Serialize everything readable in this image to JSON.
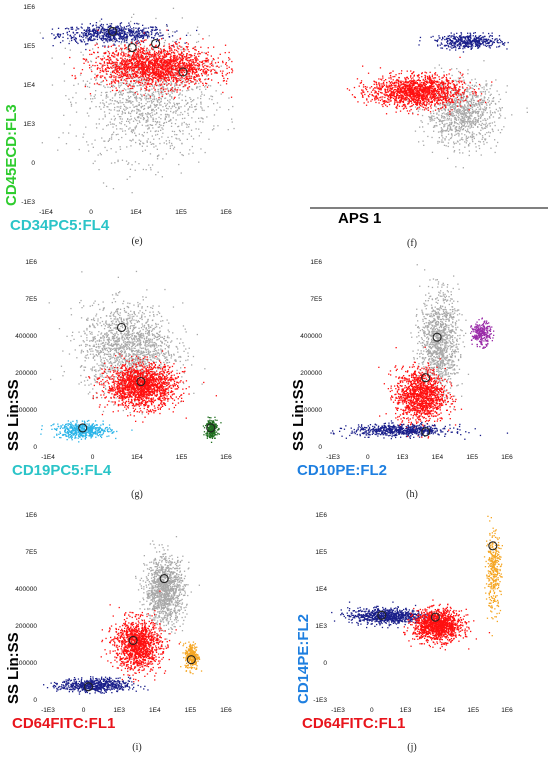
{
  "figure": {
    "panels": [
      {
        "id": "e",
        "caption": "(e)",
        "xlabel": "CD34PC5:FL4",
        "xlabel_color": "#2bc4c8",
        "ylabel": "CD45ECD:FL3",
        "ylabel_color": "#2ecc2e",
        "x_ticks": [
          "-1E4",
          "0",
          "1E4",
          "1E5",
          "1E6"
        ],
        "y_ticks": [
          "1E6",
          "1E5",
          "1E4",
          "1E3",
          "0",
          "-1E3"
        ]
      },
      {
        "id": "f",
        "caption": "(f)",
        "xlabel": "APS 1",
        "xlabel_color": "#000000",
        "ylabel": "",
        "x_ticks": [],
        "y_ticks": []
      },
      {
        "id": "g",
        "caption": "(g)",
        "xlabel": "CD19PC5:FL4",
        "xlabel_color": "#2bc4c8",
        "ylabel": "SS Lin:SS",
        "ylabel_color": "#000000",
        "x_ticks": [
          "-1E4",
          "0",
          "1E4",
          "1E5",
          "1E6"
        ],
        "y_ticks": [
          "1E6",
          "7E5",
          "400000",
          "200000",
          "100000",
          "0"
        ]
      },
      {
        "id": "h",
        "caption": "(h)",
        "xlabel": "CD10PE:FL2",
        "xlabel_color": "#1e7fe0",
        "ylabel": "SS Lin:SS",
        "ylabel_color": "#000000",
        "x_ticks": [
          "-1E3",
          "0",
          "1E3",
          "1E4",
          "1E5",
          "1E6"
        ],
        "y_ticks": [
          "1E6",
          "7E5",
          "400000",
          "200000",
          "100000",
          "0"
        ]
      },
      {
        "id": "i",
        "caption": "(i)",
        "xlabel": "CD64FITC:FL1",
        "xlabel_color": "#e8141c",
        "ylabel": "SS Lin:SS",
        "ylabel_color": "#000000",
        "x_ticks": [
          "-1E3",
          "0",
          "1E3",
          "1E4",
          "1E5",
          "1E6"
        ],
        "y_ticks": [
          "1E6",
          "7E5",
          "400000",
          "200000",
          "100000",
          "0"
        ]
      },
      {
        "id": "j",
        "caption": "(j)",
        "xlabel": "CD64FITC:FL1",
        "xlabel_color": "#e8141c",
        "ylabel": "CD14PE:FL2",
        "ylabel_color": "#1e7fe0",
        "x_ticks": [
          "-1E3",
          "0",
          "1E3",
          "1E4",
          "1E5",
          "1E6"
        ],
        "y_ticks": [
          "1E6",
          "1E5",
          "1E4",
          "1E3",
          "0",
          "-1E3"
        ]
      }
    ],
    "population_colors": {
      "gray": "#a8a8a8",
      "red": "#ff1010",
      "blue": "#1a1f8a",
      "cyan": "#2ab4e8",
      "green": "#1f6e1f",
      "purple": "#9a2ba8",
      "orange": "#f5a623"
    }
  },
  "chart_data": [
    {
      "type": "scatter",
      "panel": "e",
      "x_range": [
        "-1E4",
        "1E6"
      ],
      "y_range": [
        "-1E3",
        "1E6"
      ],
      "populations": [
        {
          "color": "blue",
          "center": [
            0.38,
            0.86
          ],
          "spread": [
            0.27,
            0.045
          ],
          "count": 700
        },
        {
          "color": "gray",
          "center": [
            0.55,
            0.55
          ],
          "spread": [
            0.32,
            0.3
          ],
          "count": 1300
        },
        {
          "color": "red",
          "center": [
            0.6,
            0.7
          ],
          "spread": [
            0.3,
            0.1
          ],
          "count": 1900
        }
      ],
      "centroids": [
        [
          0.38,
          0.87
        ],
        [
          0.48,
          0.79
        ],
        [
          0.6,
          0.81
        ],
        [
          0.74,
          0.67
        ]
      ]
    },
    {
      "type": "scatter",
      "panel": "f",
      "populations": [
        {
          "color": "gray",
          "center": [
            0.62,
            0.46
          ],
          "spread": [
            0.16,
            0.16
          ],
          "count": 1000
        },
        {
          "color": "blue",
          "center": [
            0.65,
            0.82
          ],
          "spread": [
            0.14,
            0.035
          ],
          "count": 450
        },
        {
          "color": "red",
          "center": [
            0.42,
            0.57
          ],
          "spread": [
            0.2,
            0.08
          ],
          "count": 1500
        }
      ],
      "centroids": []
    },
    {
      "type": "scatter",
      "panel": "g",
      "x_range": [
        "-1E4",
        "1E6"
      ],
      "y_range": [
        "0",
        "1E6"
      ],
      "populations": [
        {
          "color": "gray",
          "center": [
            0.45,
            0.55
          ],
          "spread": [
            0.24,
            0.22
          ],
          "count": 1500
        },
        {
          "color": "red",
          "center": [
            0.52,
            0.35
          ],
          "spread": [
            0.18,
            0.11
          ],
          "count": 1700
        },
        {
          "color": "cyan",
          "center": [
            0.22,
            0.12
          ],
          "spread": [
            0.14,
            0.04
          ],
          "count": 500
        },
        {
          "color": "green",
          "center": [
            0.88,
            0.13
          ],
          "spread": [
            0.03,
            0.05
          ],
          "count": 250
        }
      ],
      "centroids": [
        [
          0.42,
          0.65
        ],
        [
          0.52,
          0.37
        ],
        [
          0.22,
          0.13
        ],
        [
          0.88,
          0.13
        ]
      ]
    },
    {
      "type": "scatter",
      "panel": "h",
      "x_range": [
        "-1E3",
        "1E6"
      ],
      "y_range": [
        "0",
        "1E6"
      ],
      "populations": [
        {
          "color": "gray",
          "center": [
            0.6,
            0.58
          ],
          "spread": [
            0.1,
            0.25
          ],
          "count": 1100
        },
        {
          "color": "red",
          "center": [
            0.5,
            0.3
          ],
          "spread": [
            0.13,
            0.14
          ],
          "count": 1300
        },
        {
          "color": "blue",
          "center": [
            0.4,
            0.12
          ],
          "spread": [
            0.26,
            0.03
          ],
          "count": 650
        },
        {
          "color": "purple",
          "center": [
            0.82,
            0.62
          ],
          "spread": [
            0.05,
            0.06
          ],
          "count": 260
        }
      ],
      "centroids": [
        [
          0.59,
          0.6
        ],
        [
          0.53,
          0.39
        ],
        [
          0.53,
          0.11
        ]
      ]
    },
    {
      "type": "scatter",
      "panel": "i",
      "x_range": [
        "-1E3",
        "1E6"
      ],
      "y_range": [
        "0",
        "1E6"
      ],
      "populations": [
        {
          "color": "gray",
          "center": [
            0.64,
            0.6
          ],
          "spread": [
            0.1,
            0.17
          ],
          "count": 1200
        },
        {
          "color": "red",
          "center": [
            0.5,
            0.32
          ],
          "spread": [
            0.12,
            0.13
          ],
          "count": 1300
        },
        {
          "color": "blue",
          "center": [
            0.28,
            0.11
          ],
          "spread": [
            0.18,
            0.035
          ],
          "count": 650
        },
        {
          "color": "orange",
          "center": [
            0.78,
            0.26
          ],
          "spread": [
            0.035,
            0.07
          ],
          "count": 280
        }
      ],
      "centroids": [
        [
          0.64,
          0.66
        ],
        [
          0.48,
          0.34
        ],
        [
          0.78,
          0.24
        ],
        [
          0.25,
          0.1
        ]
      ]
    },
    {
      "type": "scatter",
      "panel": "j",
      "x_range": [
        "-1E3",
        "1E6"
      ],
      "y_range": [
        "-1E3",
        "1E6"
      ],
      "populations": [
        {
          "color": "blue",
          "center": [
            0.3,
            0.47
          ],
          "spread": [
            0.2,
            0.04
          ],
          "count": 800
        },
        {
          "color": "red",
          "center": [
            0.58,
            0.42
          ],
          "spread": [
            0.13,
            0.08
          ],
          "count": 1300
        },
        {
          "color": "orange",
          "center": [
            0.88,
            0.7
          ],
          "spread": [
            0.04,
            0.2
          ],
          "count": 360
        }
      ],
      "centroids": [
        [
          0.28,
          0.47
        ],
        [
          0.57,
          0.46
        ],
        [
          0.88,
          0.83
        ]
      ]
    }
  ]
}
